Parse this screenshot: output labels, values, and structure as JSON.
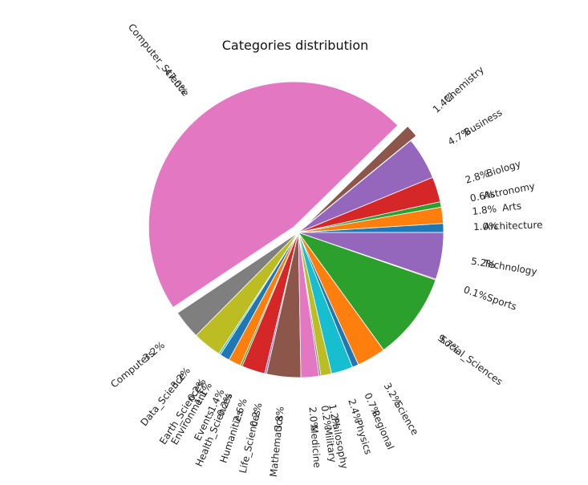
{
  "chart_data": {
    "type": "pie",
    "title": "Categories distribution",
    "start_angle_deg": 0,
    "direction": "counterclockwise",
    "slices": [
      {
        "label": "Architecture",
        "pct": "1.0%",
        "value": 1.0,
        "color": "#1f77b4",
        "explode": false
      },
      {
        "label": "Arts",
        "pct": "1.8%",
        "value": 1.8,
        "color": "#ff7f0e",
        "explode": false
      },
      {
        "label": "Astronomy",
        "pct": "0.6%",
        "value": 0.6,
        "color": "#2ca02c",
        "explode": false
      },
      {
        "label": "Biology",
        "pct": "2.8%",
        "value": 2.8,
        "color": "#d62728",
        "explode": false
      },
      {
        "label": "Business",
        "pct": "4.7%",
        "value": 4.7,
        "color": "#9467bd",
        "explode": false
      },
      {
        "label": "Chemistry",
        "pct": "1.4%",
        "value": 1.4,
        "color": "#8c564b",
        "explode": true
      },
      {
        "label": "Computer_Science",
        "pct": "47.0%",
        "value": 47.0,
        "color": "#e377c2",
        "explode": true
      },
      {
        "label": "Computers",
        "pct": "3.2%",
        "value": 3.2,
        "color": "#7f7f7f",
        "explode": false
      },
      {
        "label": "Data_Science",
        "pct": "3.2%",
        "value": 3.2,
        "color": "#bcbd22",
        "explode": false
      },
      {
        "label": "Earth_Sciences",
        "pct": "0.2%",
        "value": 0.2,
        "color": "#17becf",
        "explode": false
      },
      {
        "label": "Environment",
        "pct": "1.1%",
        "value": 1.1,
        "color": "#1f77b4",
        "explode": false
      },
      {
        "label": "Events",
        "pct": "1.4%",
        "value": 1.4,
        "color": "#ff7f0e",
        "explode": false
      },
      {
        "label": "Health_Sciences",
        "pct": "0.2%",
        "value": 0.2,
        "color": "#2ca02c",
        "explode": false
      },
      {
        "label": "Humanities",
        "pct": "2.6%",
        "value": 2.6,
        "color": "#d62728",
        "explode": false
      },
      {
        "label": "Life_Sciences",
        "pct": "0.2%",
        "value": 0.2,
        "color": "#9467bd",
        "explode": false
      },
      {
        "label": "Mathematics",
        "pct": "3.8%",
        "value": 3.8,
        "color": "#8c564b",
        "explode": false
      },
      {
        "label": "Medicine",
        "pct": "2.0%",
        "value": 2.0,
        "color": "#e377c2",
        "explode": false
      },
      {
        "label": "Military",
        "pct": "0.2%",
        "value": 0.2,
        "color": "#7f7f7f",
        "explode": false
      },
      {
        "label": "Philosophy",
        "pct": "1.2%",
        "value": 1.2,
        "color": "#bcbd22",
        "explode": false
      },
      {
        "label": "Physics",
        "pct": "2.4%",
        "value": 2.4,
        "color": "#17becf",
        "explode": false
      },
      {
        "label": "Regional",
        "pct": "0.7%",
        "value": 0.7,
        "color": "#1f77b4",
        "explode": false
      },
      {
        "label": "Science",
        "pct": "3.2%",
        "value": 3.2,
        "color": "#ff7f0e",
        "explode": false
      },
      {
        "label": "Social_Sciences",
        "pct": "9.7%",
        "value": 9.7,
        "color": "#2ca02c",
        "explode": false
      },
      {
        "label": "Sports",
        "pct": "0.1%",
        "value": 0.1,
        "color": "#d62728",
        "explode": false
      },
      {
        "label": "Technology",
        "pct": "5.2%",
        "value": 5.2,
        "color": "#9467bd",
        "explode": false
      }
    ]
  }
}
